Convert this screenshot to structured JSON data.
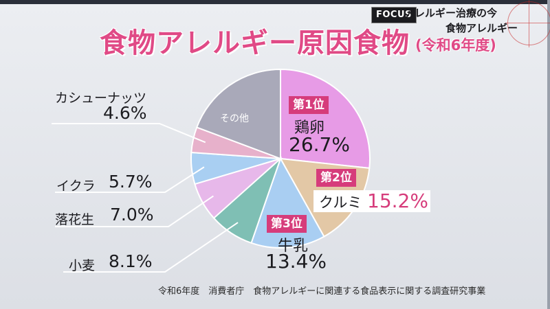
{
  "header": {
    "focus_text": "FOCUS",
    "corner_line1": "アレルギー治療の今",
    "corner_line2": "食物アレルギー",
    "title": "食物アレルギー原因食物",
    "subtitle": "(令和6年度)"
  },
  "source": "令和6年度　消費者庁　食物アレルギーに関連する食品表示に関する調査研究事業",
  "chart_data": {
    "type": "pie",
    "title": "食物アレルギー原因食物",
    "start": "12 o'clock, clockwise",
    "slices": [
      {
        "label": "鶏卵",
        "value": 26.7,
        "display": "26.7%",
        "rank": "第1位",
        "color": "#e79be6"
      },
      {
        "label": "クルミ",
        "value": 15.2,
        "display": "15.2%",
        "rank": "第2位",
        "color": "#e3c8a6"
      },
      {
        "label": "牛乳",
        "value": 13.4,
        "display": "13.4%",
        "rank": "第3位",
        "color": "#a9cef2"
      },
      {
        "label": "小麦",
        "value": 8.1,
        "display": "8.1%",
        "color": "#7fbfb4"
      },
      {
        "label": "落花生",
        "value": 7.0,
        "display": "7.0%",
        "color": "#e7b8ea"
      },
      {
        "label": "イクラ",
        "value": 5.7,
        "display": "5.7%",
        "color": "#a9cff2"
      },
      {
        "label": "カシューナッツ",
        "value": 4.6,
        "display": "4.6%",
        "color": "#e7b1cb"
      },
      {
        "label": "その他",
        "value": 19.3,
        "display": "",
        "color": "#a9a9b9"
      }
    ]
  }
}
